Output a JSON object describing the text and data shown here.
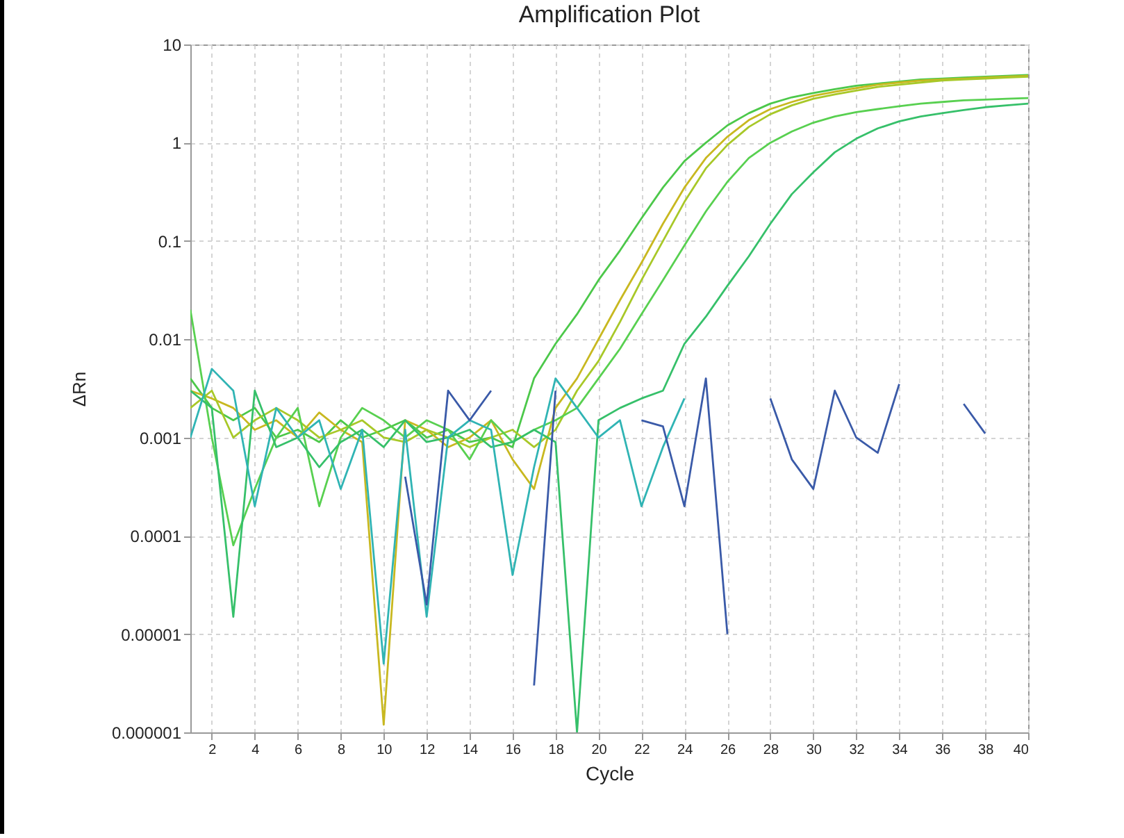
{
  "chart_data": {
    "type": "line",
    "title": "Amplification Plot",
    "xlabel": "Cycle",
    "ylabel": "ΔRn",
    "x": [
      1,
      2,
      3,
      4,
      5,
      6,
      7,
      8,
      9,
      10,
      11,
      12,
      13,
      14,
      15,
      16,
      17,
      18,
      19,
      20,
      21,
      22,
      23,
      24,
      25,
      26,
      27,
      28,
      29,
      30,
      31,
      32,
      33,
      34,
      35,
      36,
      37,
      38,
      39,
      40
    ],
    "series": [
      {
        "color": "#4cc84a",
        "values": [
          0.004,
          0.002,
          0.0015,
          0.002,
          0.001,
          0.0012,
          0.0009,
          0.0015,
          0.001,
          0.0012,
          0.0015,
          0.001,
          0.0012,
          0.0009,
          0.001,
          0.0008,
          0.004,
          0.009,
          0.018,
          0.04,
          0.08,
          0.17,
          0.35,
          0.65,
          1.0,
          1.5,
          2.0,
          2.5,
          2.9,
          3.2,
          3.5,
          3.8,
          4.0,
          4.2,
          4.4,
          4.5,
          4.6,
          4.7,
          4.8,
          4.9
        ]
      },
      {
        "color": "#c8b820",
        "values": [
          0.003,
          0.0025,
          0.002,
          0.0012,
          0.0015,
          0.001,
          0.0018,
          0.0012,
          0.0009,
          1.2e-06,
          0.0015,
          0.0012,
          0.0008,
          0.001,
          0.0015,
          0.0006,
          0.0003,
          0.002,
          0.004,
          0.01,
          0.025,
          0.06,
          0.15,
          0.35,
          0.7,
          1.15,
          1.7,
          2.2,
          2.6,
          3.0,
          3.3,
          3.6,
          3.9,
          4.1,
          4.3,
          4.4,
          4.5,
          4.6,
          4.7,
          4.8
        ]
      },
      {
        "color": "#a8c828",
        "values": [
          0.002,
          0.003,
          0.001,
          0.0015,
          0.002,
          0.0015,
          0.001,
          0.0012,
          0.0015,
          0.001,
          0.0009,
          0.0012,
          0.001,
          0.0008,
          0.001,
          0.0012,
          0.0008,
          0.0012,
          0.003,
          0.006,
          0.015,
          0.04,
          0.1,
          0.25,
          0.55,
          0.95,
          1.45,
          1.95,
          2.4,
          2.8,
          3.1,
          3.4,
          3.7,
          3.9,
          4.1,
          4.3,
          4.4,
          4.5,
          4.6,
          4.7
        ]
      },
      {
        "color": "#58d050",
        "values": [
          0.02,
          0.001,
          8e-05,
          0.0003,
          0.001,
          0.002,
          0.0002,
          0.001,
          0.002,
          0.0015,
          0.001,
          0.0015,
          0.0012,
          0.0006,
          0.0015,
          0.0009,
          0.0012,
          0.0015,
          0.002,
          0.004,
          0.008,
          0.018,
          0.04,
          0.09,
          0.2,
          0.4,
          0.7,
          1.0,
          1.3,
          1.6,
          1.85,
          2.05,
          2.2,
          2.35,
          2.5,
          2.6,
          2.7,
          2.75,
          2.8,
          2.85
        ]
      },
      {
        "color": "#36c06a",
        "values": [
          0.003,
          0.002,
          1.5e-05,
          0.003,
          0.0008,
          0.001,
          0.0005,
          0.0009,
          0.0012,
          0.0008,
          0.0015,
          0.0009,
          0.001,
          0.0012,
          0.0008,
          0.0009,
          0.0012,
          0.0009,
          1e-06,
          0.0015,
          0.002,
          0.0025,
          0.003,
          0.009,
          0.017,
          0.035,
          0.07,
          0.15,
          0.3,
          0.5,
          0.8,
          1.1,
          1.4,
          1.65,
          1.85,
          2.0,
          2.15,
          2.3,
          2.4,
          2.5
        ]
      },
      {
        "color": "#30b4b4",
        "values": [
          0.001,
          0.005,
          0.003,
          0.0002,
          0.002,
          0.001,
          0.0015,
          0.0003,
          0.0012,
          5e-06,
          0.0012,
          1.5e-05,
          0.001,
          0.0015,
          0.0012,
          4e-05,
          0.0005,
          0.004,
          0.002,
          0.001,
          0.0015,
          0.0002,
          0.0008,
          0.0025,
          null,
          null,
          null,
          null,
          null,
          null,
          null,
          null,
          null,
          null,
          null,
          null,
          null,
          null,
          null,
          null
        ]
      },
      {
        "color": "#3a5aa8",
        "values": [
          null,
          null,
          null,
          null,
          null,
          null,
          null,
          null,
          null,
          null,
          0.0004,
          2e-05,
          0.003,
          0.0015,
          0.003,
          null,
          3e-06,
          0.003,
          null,
          null,
          null,
          0.0015,
          0.0013,
          0.0002,
          0.004,
          1e-05,
          null,
          0.0025,
          0.0006,
          0.0003,
          0.003,
          0.001,
          0.0007,
          0.0035,
          null,
          null,
          0.0022,
          0.0011,
          null,
          null
        ]
      }
    ],
    "xlim": [
      1,
      40
    ],
    "xticks": [
      2,
      4,
      6,
      8,
      10,
      12,
      14,
      16,
      18,
      20,
      22,
      24,
      26,
      28,
      30,
      32,
      34,
      36,
      38,
      40
    ],
    "ylim": [
      1e-06,
      10
    ],
    "yticks": [
      {
        "value": 1e-06,
        "label": "0.000001"
      },
      {
        "value": 1e-05,
        "label": "0.00001"
      },
      0.0001,
      0.001,
      0.01,
      0.1,
      1,
      10
    ],
    "log": "y",
    "grid": true,
    "legend": false,
    "marker": "none",
    "line_style": "solid"
  }
}
